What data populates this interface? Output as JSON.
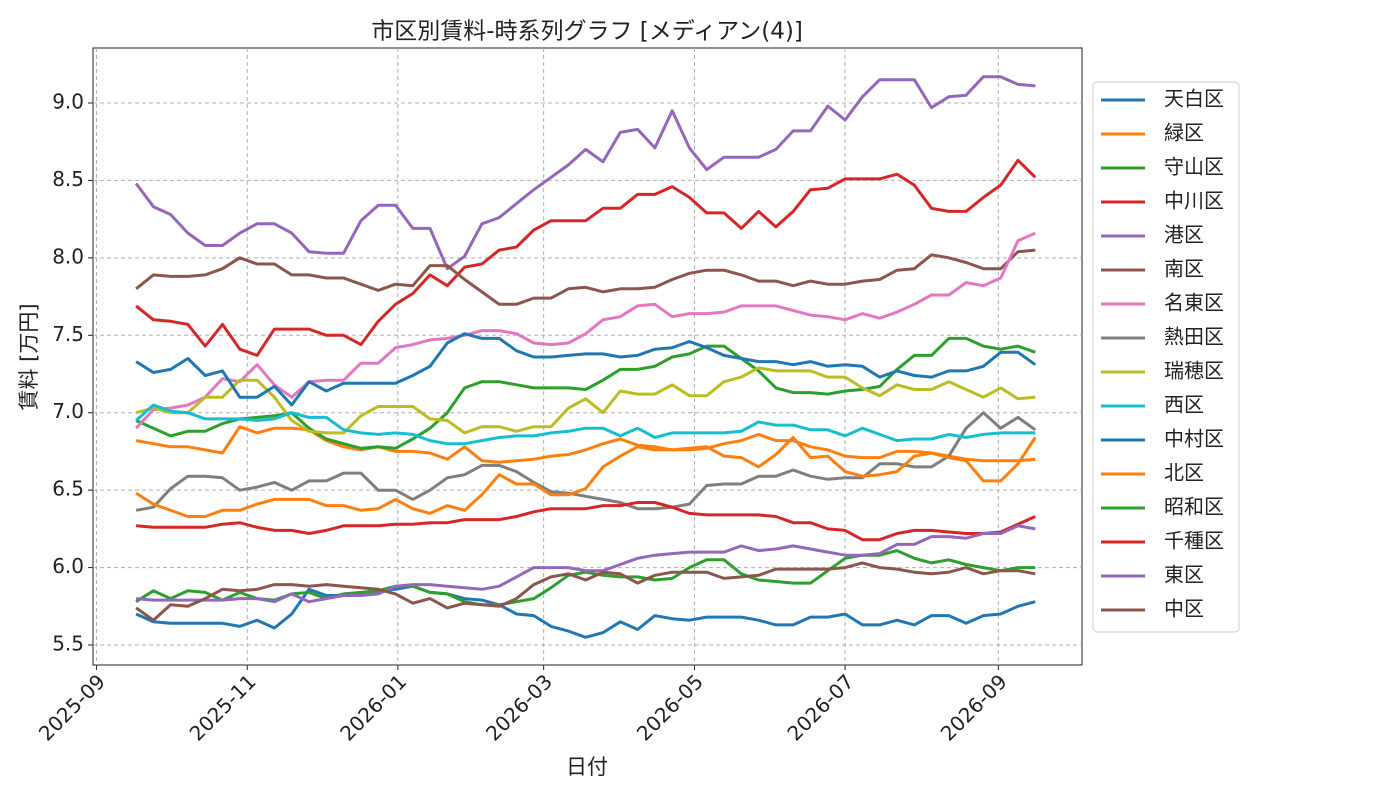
{
  "chart_data": {
    "type": "line",
    "title": "市区別賃料-時系列グラフ [メディアン(4)]",
    "xlabel": "日付",
    "ylabel": "賃料 [万円]",
    "xlim": [
      -2.49,
      54.7
    ],
    "ylim": [
      5.371,
      9.355
    ],
    "xticks": [
      {
        "value": -2.29,
        "label": "2025-09"
      },
      {
        "value": 6.43,
        "label": "2025-11"
      },
      {
        "value": 15.14,
        "label": "2026-01"
      },
      {
        "value": 23.57,
        "label": "2026-03"
      },
      {
        "value": 32.29,
        "label": "2026-05"
      },
      {
        "value": 41,
        "label": "2026-07"
      },
      {
        "value": 49.86,
        "label": "2026-09"
      }
    ],
    "yticks": [
      5.5,
      {
        "value": 6,
        "label": "6.0"
      },
      6.5,
      {
        "value": 7,
        "label": "7.0"
      },
      7.5,
      {
        "value": 8,
        "label": "8.0"
      },
      8.5,
      {
        "value": 9,
        "label": "9.0"
      }
    ],
    "grid": true,
    "legend": "outside-right",
    "series": [
      {
        "name": "天白区",
        "color": "#1f77b4",
        "values": [
          5.7,
          5.65,
          5.64,
          5.64,
          5.64,
          5.64,
          5.62,
          5.66,
          5.61,
          5.7,
          5.86,
          5.82,
          5.82,
          5.83,
          5.85,
          5.86,
          5.88,
          5.84,
          5.83,
          5.8,
          5.79,
          5.76,
          5.7,
          5.69,
          5.62,
          5.59,
          5.55,
          5.58,
          5.65,
          5.6,
          5.69,
          5.67,
          5.66,
          5.68,
          5.68,
          5.68,
          5.66,
          5.63,
          5.63,
          5.68,
          5.68,
          5.7,
          5.63,
          5.63,
          5.66,
          5.63,
          5.69,
          5.69,
          5.64,
          5.69,
          5.7,
          5.75,
          5.78
        ]
      },
      {
        "name": "緑区",
        "color": "#ff7f0e",
        "values": [
          6.82,
          6.8,
          6.78,
          6.78,
          6.76,
          6.74,
          6.91,
          6.87,
          6.9,
          6.9,
          6.89,
          6.82,
          6.78,
          6.76,
          6.78,
          6.75,
          6.75,
          6.74,
          6.7,
          6.78,
          6.69,
          6.68,
          6.69,
          6.7,
          6.72,
          6.73,
          6.76,
          6.8,
          6.83,
          6.79,
          6.78,
          6.76,
          6.76,
          6.77,
          6.8,
          6.82,
          6.86,
          6.82,
          6.82,
          6.78,
          6.76,
          6.72,
          6.71,
          6.71,
          6.75,
          6.75,
          6.74,
          6.72,
          6.7,
          6.69,
          6.69,
          6.69,
          6.7
        ]
      },
      {
        "name": "守山区",
        "color": "#2ca02c",
        "values": [
          6.95,
          6.9,
          6.85,
          6.88,
          6.88,
          6.93,
          6.96,
          6.97,
          6.98,
          7.0,
          6.9,
          6.83,
          6.8,
          6.77,
          6.78,
          6.77,
          6.83,
          6.9,
          7.0,
          7.16,
          7.2,
          7.2,
          7.18,
          7.16,
          7.16,
          7.16,
          7.15,
          7.21,
          7.28,
          7.28,
          7.3,
          7.36,
          7.38,
          7.43,
          7.43,
          7.35,
          7.27,
          7.16,
          7.13,
          7.13,
          7.12,
          7.14,
          7.15,
          7.17,
          7.28,
          7.37,
          7.37,
          7.48,
          7.48,
          7.43,
          7.41,
          7.43,
          7.39
        ]
      },
      {
        "name": "中川区",
        "color": "#d62728",
        "values": [
          7.69,
          7.6,
          7.59,
          7.57,
          7.43,
          7.57,
          7.41,
          7.37,
          7.54,
          7.54,
          7.54,
          7.5,
          7.5,
          7.44,
          7.59,
          7.7,
          7.77,
          7.89,
          7.82,
          7.94,
          7.96,
          8.05,
          8.07,
          8.18,
          8.24,
          8.24,
          8.24,
          8.32,
          8.32,
          8.41,
          8.41,
          8.46,
          8.39,
          8.29,
          8.29,
          8.19,
          8.3,
          8.2,
          8.3,
          8.44,
          8.45,
          8.51,
          8.51,
          8.51,
          8.54,
          8.47,
          8.32,
          8.3,
          8.3,
          8.39,
          8.47,
          8.63,
          8.52
        ]
      },
      {
        "name": "港区",
        "color": "#9467bd",
        "values": [
          8.48,
          8.33,
          8.28,
          8.16,
          8.08,
          8.08,
          8.16,
          8.22,
          8.22,
          8.16,
          8.04,
          8.03,
          8.03,
          8.24,
          8.34,
          8.34,
          8.19,
          8.19,
          7.93,
          8.01,
          8.22,
          8.26,
          8.35,
          8.44,
          8.52,
          8.6,
          8.7,
          8.62,
          8.81,
          8.83,
          8.71,
          8.95,
          8.71,
          8.57,
          8.65,
          8.65,
          8.65,
          8.7,
          8.82,
          8.82,
          8.98,
          8.89,
          9.04,
          9.15,
          9.15,
          9.15,
          8.97,
          9.04,
          9.05,
          9.17,
          9.17,
          9.12,
          9.11
        ]
      },
      {
        "name": "南区",
        "color": "#8c564b",
        "values": [
          7.8,
          7.89,
          7.88,
          7.88,
          7.89,
          7.93,
          8.0,
          7.96,
          7.96,
          7.89,
          7.89,
          7.87,
          7.87,
          7.83,
          7.79,
          7.83,
          7.82,
          7.95,
          7.95,
          7.86,
          7.78,
          7.7,
          7.7,
          7.74,
          7.74,
          7.8,
          7.81,
          7.78,
          7.8,
          7.8,
          7.81,
          7.86,
          7.9,
          7.92,
          7.92,
          7.89,
          7.85,
          7.85,
          7.82,
          7.85,
          7.83,
          7.83,
          7.85,
          7.86,
          7.92,
          7.93,
          8.02,
          8.0,
          7.97,
          7.93,
          7.93,
          8.04,
          8.05
        ]
      },
      {
        "name": "名東区",
        "color": "#e377c2",
        "values": [
          6.9,
          7.02,
          7.03,
          7.05,
          7.1,
          7.22,
          7.2,
          7.31,
          7.18,
          7.1,
          7.2,
          7.21,
          7.21,
          7.32,
          7.32,
          7.42,
          7.44,
          7.47,
          7.48,
          7.5,
          7.53,
          7.53,
          7.51,
          7.45,
          7.44,
          7.45,
          7.51,
          7.6,
          7.62,
          7.69,
          7.7,
          7.62,
          7.64,
          7.64,
          7.65,
          7.69,
          7.69,
          7.69,
          7.66,
          7.63,
          7.62,
          7.6,
          7.64,
          7.61,
          7.65,
          7.7,
          7.76,
          7.76,
          7.84,
          7.82,
          7.87,
          8.11,
          8.16
        ]
      },
      {
        "name": "熱田区",
        "color": "#7f7f7f",
        "values": [
          6.37,
          6.39,
          6.51,
          6.59,
          6.59,
          6.58,
          6.5,
          6.52,
          6.55,
          6.5,
          6.56,
          6.56,
          6.61,
          6.61,
          6.5,
          6.5,
          6.44,
          6.5,
          6.58,
          6.6,
          6.66,
          6.66,
          6.62,
          6.55,
          6.49,
          6.48,
          6.46,
          6.44,
          6.42,
          6.38,
          6.38,
          6.39,
          6.41,
          6.53,
          6.54,
          6.54,
          6.59,
          6.59,
          6.63,
          6.59,
          6.57,
          6.58,
          6.58,
          6.67,
          6.67,
          6.65,
          6.65,
          6.72,
          6.9,
          7.0,
          6.9,
          6.97,
          6.89
        ]
      },
      {
        "name": "瑞穂区",
        "color": "#bcbd22",
        "values": [
          7.0,
          7.03,
          7.0,
          7.0,
          7.1,
          7.1,
          7.21,
          7.21,
          7.1,
          6.95,
          6.88,
          6.87,
          6.87,
          6.98,
          7.04,
          7.04,
          7.04,
          6.96,
          6.95,
          6.87,
          6.91,
          6.91,
          6.88,
          6.91,
          6.91,
          7.03,
          7.09,
          7.0,
          7.14,
          7.12,
          7.12,
          7.18,
          7.11,
          7.11,
          7.2,
          7.23,
          7.29,
          7.27,
          7.27,
          7.27,
          7.23,
          7.23,
          7.16,
          7.11,
          7.18,
          7.15,
          7.15,
          7.2,
          7.15,
          7.1,
          7.16,
          7.09,
          7.1
        ]
      },
      {
        "name": "西区",
        "color": "#17becf",
        "values": [
          6.95,
          7.05,
          7.01,
          7.0,
          6.96,
          6.96,
          6.96,
          6.95,
          6.96,
          7.0,
          6.97,
          6.97,
          6.89,
          6.87,
          6.86,
          6.87,
          6.86,
          6.82,
          6.8,
          6.8,
          6.82,
          6.84,
          6.85,
          6.85,
          6.87,
          6.88,
          6.9,
          6.9,
          6.85,
          6.9,
          6.84,
          6.87,
          6.87,
          6.87,
          6.87,
          6.88,
          6.94,
          6.92,
          6.92,
          6.89,
          6.89,
          6.85,
          6.9,
          6.86,
          6.82,
          6.83,
          6.83,
          6.86,
          6.84,
          6.86,
          6.87,
          6.87,
          6.87
        ]
      },
      {
        "name": "中村区",
        "color": "#1f77b4",
        "values": [
          7.33,
          7.26,
          7.28,
          7.35,
          7.24,
          7.27,
          7.1,
          7.1,
          7.17,
          7.05,
          7.2,
          7.14,
          7.19,
          7.19,
          7.19,
          7.19,
          7.24,
          7.3,
          7.45,
          7.51,
          7.48,
          7.48,
          7.4,
          7.36,
          7.36,
          7.37,
          7.38,
          7.38,
          7.36,
          7.37,
          7.41,
          7.42,
          7.46,
          7.42,
          7.37,
          7.35,
          7.33,
          7.33,
          7.31,
          7.33,
          7.3,
          7.31,
          7.3,
          7.23,
          7.27,
          7.24,
          7.23,
          7.27,
          7.27,
          7.3,
          7.39,
          7.39,
          7.31
        ]
      },
      {
        "name": "北区",
        "color": "#ff7f0e",
        "values": [
          6.48,
          6.41,
          6.37,
          6.33,
          6.33,
          6.37,
          6.37,
          6.41,
          6.44,
          6.44,
          6.44,
          6.4,
          6.4,
          6.37,
          6.38,
          6.44,
          6.38,
          6.35,
          6.4,
          6.37,
          6.47,
          6.6,
          6.54,
          6.54,
          6.47,
          6.47,
          6.51,
          6.65,
          6.72,
          6.78,
          6.76,
          6.76,
          6.77,
          6.78,
          6.72,
          6.71,
          6.65,
          6.73,
          6.84,
          6.71,
          6.72,
          6.62,
          6.59,
          6.6,
          6.62,
          6.72,
          6.74,
          6.71,
          6.69,
          6.56,
          6.56,
          6.67,
          6.84
        ]
      },
      {
        "name": "昭和区",
        "color": "#2ca02c",
        "values": [
          5.78,
          5.85,
          5.8,
          5.85,
          5.84,
          5.79,
          5.84,
          5.8,
          5.79,
          5.83,
          5.84,
          5.8,
          5.83,
          5.84,
          5.85,
          5.88,
          5.88,
          5.84,
          5.83,
          5.78,
          5.76,
          5.76,
          5.78,
          5.8,
          5.87,
          5.95,
          5.97,
          5.95,
          5.94,
          5.94,
          5.92,
          5.93,
          6.0,
          6.05,
          6.05,
          5.96,
          5.92,
          5.91,
          5.9,
          5.9,
          5.98,
          6.06,
          6.08,
          6.08,
          6.11,
          6.06,
          6.03,
          6.05,
          6.02,
          6.0,
          5.98,
          6.0,
          6.0
        ]
      },
      {
        "name": "千種区",
        "color": "#d62728",
        "values": [
          6.27,
          6.26,
          6.26,
          6.26,
          6.26,
          6.28,
          6.29,
          6.26,
          6.24,
          6.24,
          6.22,
          6.24,
          6.27,
          6.27,
          6.27,
          6.28,
          6.28,
          6.29,
          6.29,
          6.31,
          6.31,
          6.31,
          6.33,
          6.36,
          6.38,
          6.38,
          6.38,
          6.4,
          6.4,
          6.42,
          6.42,
          6.39,
          6.35,
          6.34,
          6.34,
          6.34,
          6.34,
          6.33,
          6.29,
          6.29,
          6.25,
          6.24,
          6.18,
          6.18,
          6.22,
          6.24,
          6.24,
          6.23,
          6.22,
          6.22,
          6.23,
          6.28,
          6.33
        ]
      },
      {
        "name": "東区",
        "color": "#9467bd",
        "values": [
          5.8,
          5.79,
          5.79,
          5.79,
          5.79,
          5.79,
          5.8,
          5.8,
          5.78,
          5.83,
          5.78,
          5.8,
          5.82,
          5.82,
          5.83,
          5.88,
          5.89,
          5.89,
          5.88,
          5.87,
          5.86,
          5.88,
          5.94,
          6.0,
          6.0,
          6.0,
          5.98,
          5.98,
          6.02,
          6.06,
          6.08,
          6.09,
          6.1,
          6.1,
          6.1,
          6.14,
          6.11,
          6.12,
          6.14,
          6.12,
          6.1,
          6.08,
          6.08,
          6.09,
          6.15,
          6.15,
          6.2,
          6.2,
          6.19,
          6.22,
          6.22,
          6.27,
          6.25
        ]
      },
      {
        "name": "中区",
        "color": "#8c564b",
        "values": [
          5.74,
          5.66,
          5.76,
          5.75,
          5.8,
          5.86,
          5.85,
          5.86,
          5.89,
          5.89,
          5.88,
          5.89,
          5.88,
          5.87,
          5.86,
          5.83,
          5.77,
          5.8,
          5.74,
          5.77,
          5.76,
          5.75,
          5.8,
          5.89,
          5.94,
          5.96,
          5.92,
          5.97,
          5.96,
          5.9,
          5.95,
          5.97,
          5.97,
          5.97,
          5.93,
          5.94,
          5.95,
          5.99,
          5.99,
          5.99,
          5.99,
          6.0,
          6.03,
          6.0,
          5.99,
          5.97,
          5.96,
          5.97,
          6.0,
          5.96,
          5.98,
          5.98,
          5.96
        ]
      }
    ]
  }
}
